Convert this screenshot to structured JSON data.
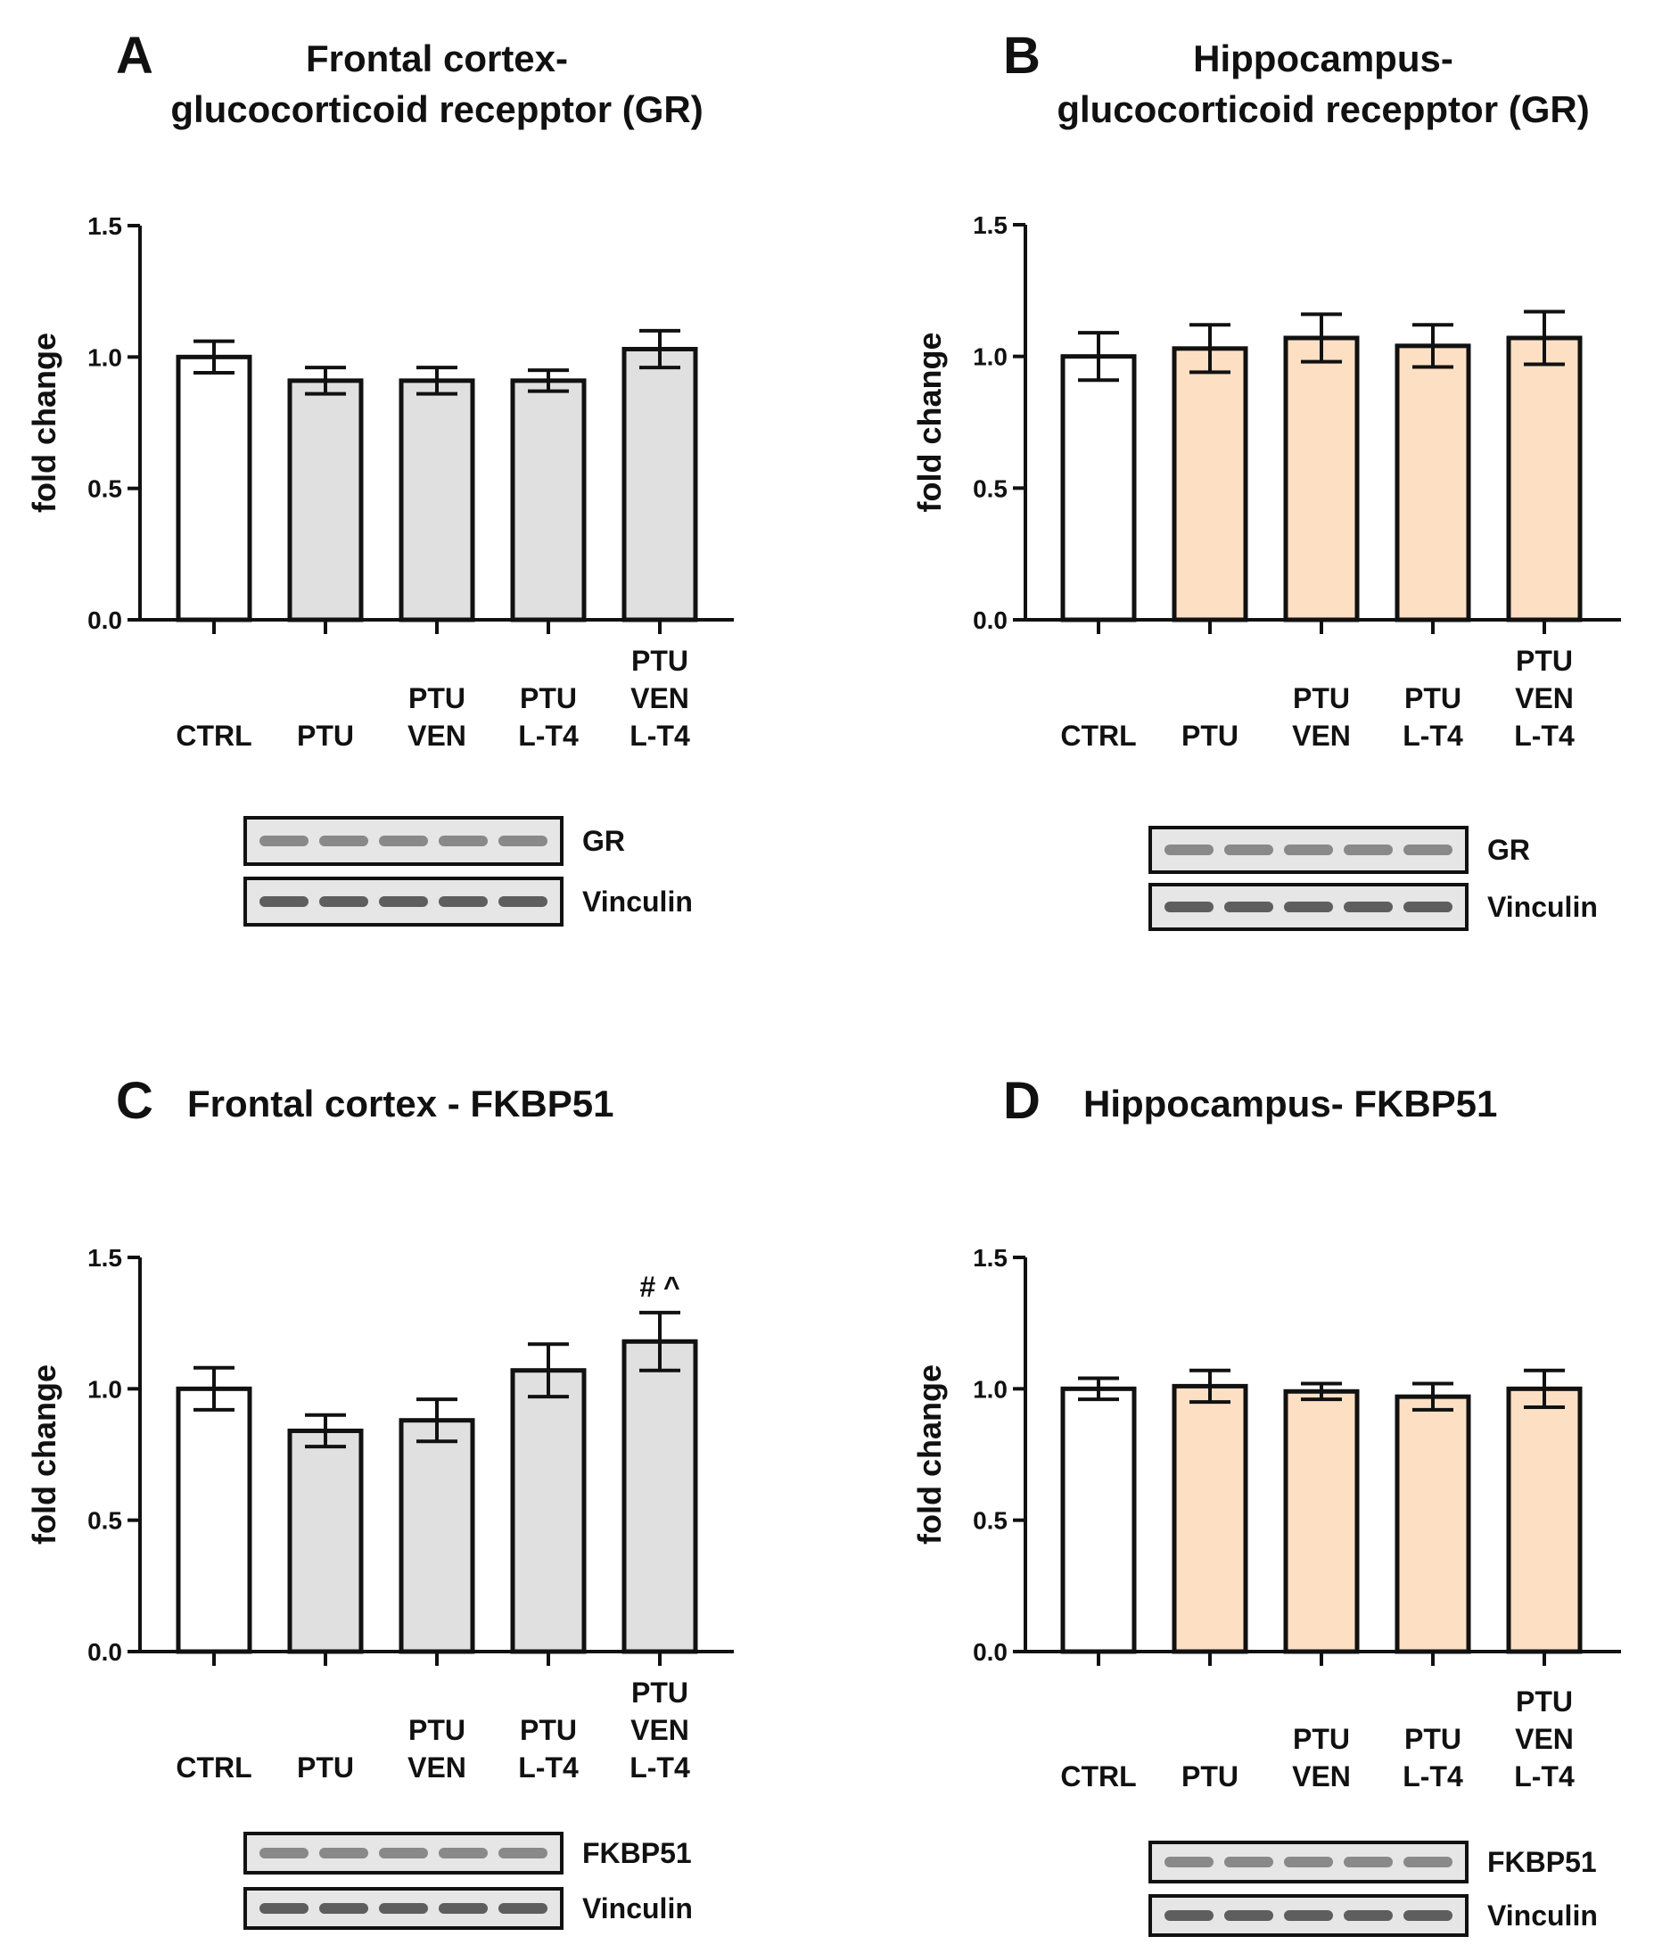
{
  "chart_data": [
    {
      "panel_letter": "A",
      "type": "bar",
      "title_lines": [
        "Frontal cortex-",
        "glucocorticoid recepptor (GR)"
      ],
      "ylabel": "fold change",
      "ylim": [
        0,
        1.5
      ],
      "yticks": [
        "0.0",
        "0.5",
        "1.0",
        "1.5"
      ],
      "categories": [
        [
          "CTRL"
        ],
        [
          "PTU"
        ],
        [
          "PTU",
          "VEN"
        ],
        [
          "PTU",
          "L-T4"
        ],
        [
          "PTU",
          "VEN",
          "L-T4"
        ]
      ],
      "values": [
        1.0,
        0.91,
        0.91,
        0.91,
        1.03
      ],
      "errors": [
        0.06,
        0.05,
        0.05,
        0.04,
        0.07
      ],
      "annotations": [
        "",
        "",
        "",
        "",
        ""
      ],
      "bar_colors": [
        "#ffffff",
        "#e0e0e0",
        "#e0e0e0",
        "#e0e0e0",
        "#e0e0e0"
      ],
      "blot_labels": [
        "GR",
        "Vinculin"
      ]
    },
    {
      "panel_letter": "B",
      "type": "bar",
      "title_lines": [
        "Hippocampus-",
        "glucocorticoid recepptor (GR)"
      ],
      "ylabel": "fold change",
      "ylim": [
        0,
        1.5
      ],
      "yticks": [
        "0.0",
        "0.5",
        "1.0",
        "1.5"
      ],
      "categories": [
        [
          "CTRL"
        ],
        [
          "PTU"
        ],
        [
          "PTU",
          "VEN"
        ],
        [
          "PTU",
          "L-T4"
        ],
        [
          "PTU",
          "VEN",
          "L-T4"
        ]
      ],
      "values": [
        1.0,
        1.03,
        1.07,
        1.04,
        1.07
      ],
      "errors": [
        0.09,
        0.09,
        0.09,
        0.08,
        0.1
      ],
      "annotations": [
        "",
        "",
        "",
        "",
        ""
      ],
      "bar_colors": [
        "#ffffff",
        "#fde0c4",
        "#fde0c4",
        "#fde0c4",
        "#fde0c4"
      ],
      "blot_labels": [
        "GR",
        "Vinculin"
      ]
    },
    {
      "panel_letter": "C",
      "type": "bar",
      "title_lines": [
        "Frontal cortex - FKBP51"
      ],
      "ylabel": "fold change",
      "ylim": [
        0,
        1.5
      ],
      "yticks": [
        "0.0",
        "0.5",
        "1.0",
        "1.5"
      ],
      "categories": [
        [
          "CTRL"
        ],
        [
          "PTU"
        ],
        [
          "PTU",
          "VEN"
        ],
        [
          "PTU",
          "L-T4"
        ],
        [
          "PTU",
          "VEN",
          "L-T4"
        ]
      ],
      "values": [
        1.0,
        0.84,
        0.88,
        1.07,
        1.18
      ],
      "errors": [
        0.08,
        0.06,
        0.08,
        0.1,
        0.11
      ],
      "annotations": [
        "",
        "",
        "",
        "",
        "# ^"
      ],
      "bar_colors": [
        "#ffffff",
        "#e0e0e0",
        "#e0e0e0",
        "#e0e0e0",
        "#e0e0e0"
      ],
      "blot_labels": [
        "FKBP51",
        "Vinculin"
      ]
    },
    {
      "panel_letter": "D",
      "type": "bar",
      "title_lines": [
        "Hippocampus- FKBP51"
      ],
      "ylabel": "fold change",
      "ylim": [
        0,
        1.5
      ],
      "yticks": [
        "0.0",
        "0.5",
        "1.0",
        "1.5"
      ],
      "categories": [
        [
          "CTRL"
        ],
        [
          "PTU"
        ],
        [
          "PTU",
          "VEN"
        ],
        [
          "PTU",
          "L-T4"
        ],
        [
          "PTU",
          "VEN",
          "L-T4"
        ]
      ],
      "values": [
        1.0,
        1.01,
        0.99,
        0.97,
        1.0
      ],
      "errors": [
        0.04,
        0.06,
        0.03,
        0.05,
        0.07
      ],
      "annotations": [
        "",
        "",
        "",
        "",
        ""
      ],
      "bar_colors": [
        "#ffffff",
        "#fde0c4",
        "#fde0c4",
        "#fde0c4",
        "#fde0c4"
      ],
      "blot_labels": [
        "FKBP51",
        "Vinculin"
      ]
    }
  ]
}
